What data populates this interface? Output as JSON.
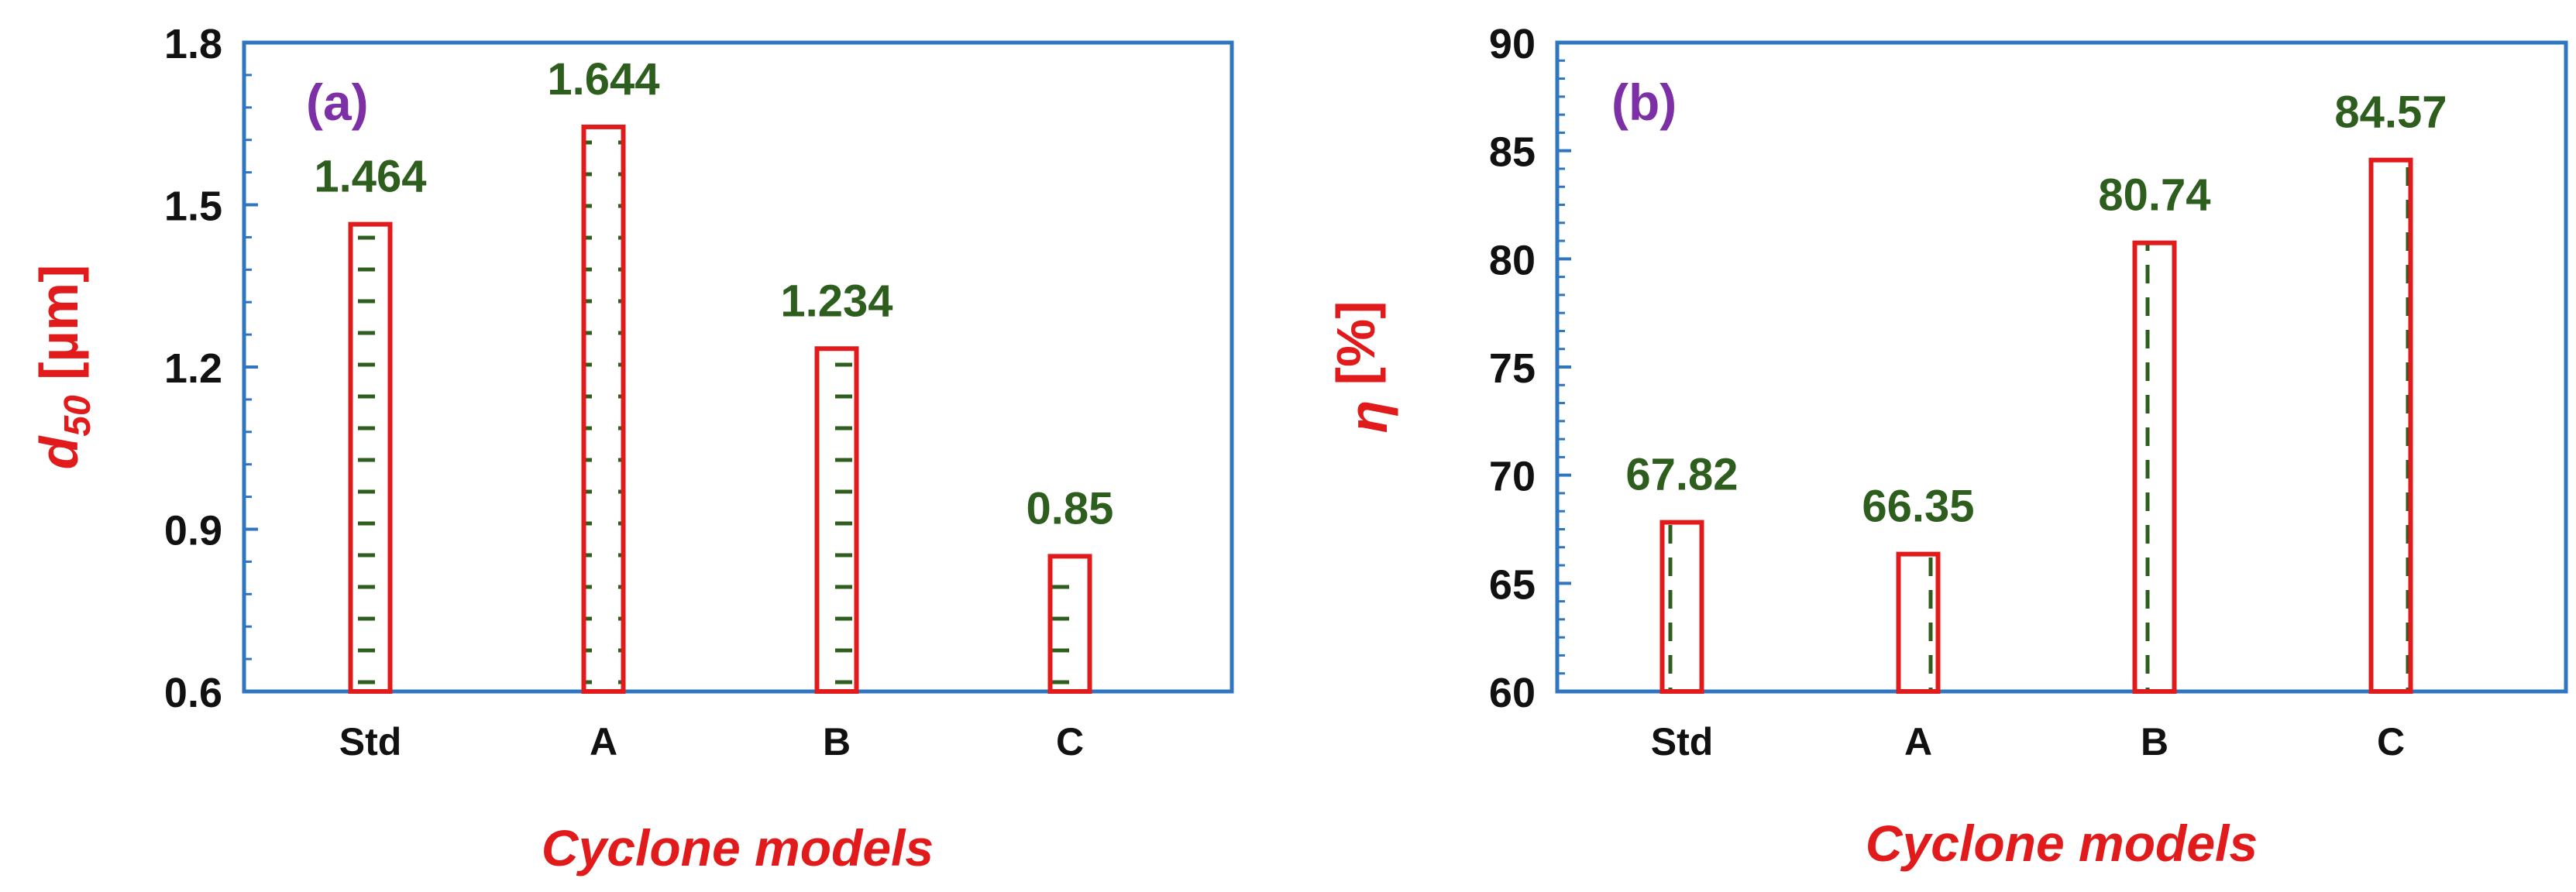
{
  "colors": {
    "axis_frame": "#2f75c0",
    "bar_outline": "#e11b1b",
    "bar_pattern": "#2e5e1e",
    "value_label": "#2e5e1e",
    "panel_tag": "#7d2fa5",
    "axis_title": "#e11b1b",
    "tick_text": "#111111"
  },
  "chart_data": [
    {
      "type": "bar",
      "panel_tag": "(a)",
      "categories": [
        "Std",
        "A",
        "B",
        "C"
      ],
      "values": [
        1.464,
        1.644,
        1.234,
        0.85
      ],
      "value_labels": [
        "1.464",
        "1.644",
        "1.234",
        "0.85"
      ],
      "ylim": [
        0.6,
        1.8
      ],
      "y_ticks": [
        0.6,
        0.9,
        1.2,
        1.5,
        1.8
      ],
      "y_tick_labels": [
        "0.6",
        "0.9",
        "1.2",
        "1.5",
        "1.8"
      ],
      "ylabel_main": "d",
      "ylabel_sub": "50",
      "ylabel_unit": " [µm]",
      "xlabel": "Cyclone models",
      "pattern": "horizontal-dashes",
      "grid": false
    },
    {
      "type": "bar",
      "panel_tag": "(b)",
      "categories": [
        "Std",
        "A",
        "B",
        "C"
      ],
      "values": [
        67.82,
        66.35,
        80.74,
        84.57
      ],
      "value_labels": [
        "67.82",
        "66.35",
        "80.74",
        "84.57"
      ],
      "ylim": [
        60,
        90
      ],
      "y_ticks": [
        60,
        65,
        70,
        75,
        80,
        85,
        90
      ],
      "y_tick_labels": [
        "60",
        "65",
        "70",
        "75",
        "80",
        "85",
        "90"
      ],
      "ylabel_main": "η",
      "ylabel_sub": "",
      "ylabel_unit": " [%]",
      "xlabel": "Cyclone models",
      "pattern": "vertical-dashes",
      "grid": false
    }
  ]
}
